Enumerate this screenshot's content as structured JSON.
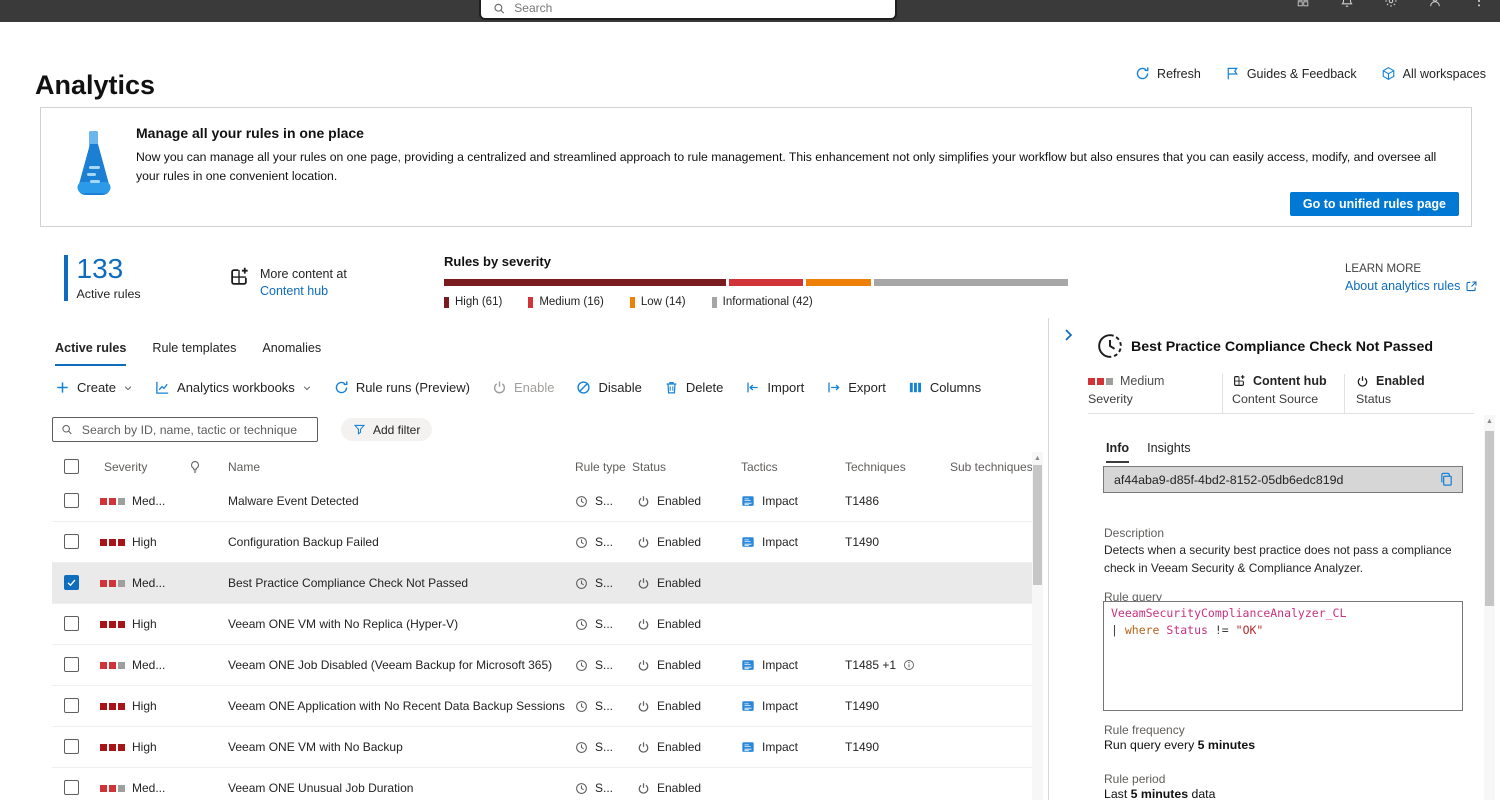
{
  "topbar": {
    "search_placeholder": "Search",
    "icons": [
      "apps-icon",
      "bell-icon",
      "gear-icon",
      "person-icon",
      "more-icon"
    ]
  },
  "header": {
    "title": "Analytics",
    "actions": {
      "refresh": "Refresh",
      "guides": "Guides & Feedback",
      "workspaces": "All workspaces"
    }
  },
  "banner": {
    "title": "Manage all your rules in one place",
    "description": "Now you can manage all your rules on one page, providing a centralized and streamlined approach to rule management. This enhancement not only simplifies your workflow but also ensures that you can easily access, modify, and oversee all your rules in one convenient location.",
    "button": "Go to unified rules page"
  },
  "stats": {
    "count": "133",
    "count_label": "Active rules",
    "more_content": "More content at",
    "content_hub": "Content hub",
    "severity_title": "Rules by severity",
    "segments": [
      {
        "label": "High (61)",
        "name": "High",
        "count": 61,
        "pct": 45.9,
        "color": "#7a1b1f"
      },
      {
        "label": "Medium (16)",
        "name": "Medium",
        "count": 16,
        "pct": 12.0,
        "color": "#d13438"
      },
      {
        "label": "Low (14)",
        "name": "Low",
        "count": 14,
        "pct": 10.5,
        "color": "#ee8008"
      },
      {
        "label": "Informational (42)",
        "name": "Informational",
        "count": 42,
        "pct": 31.6,
        "color": "#a6a6a6"
      }
    ],
    "learn_more": "LEARN MORE",
    "learn_link": "About analytics rules"
  },
  "tabs": [
    {
      "label": "Active rules",
      "active": true
    },
    {
      "label": "Rule templates",
      "active": false
    },
    {
      "label": "Anomalies",
      "active": false
    }
  ],
  "toolbar": {
    "items": [
      {
        "label": "Create"
      },
      {
        "label": "Analytics workbooks"
      },
      {
        "label": "Rule runs (Preview)"
      },
      {
        "label": "Enable",
        "disabled": true
      },
      {
        "label": "Disable"
      },
      {
        "label": "Delete"
      },
      {
        "label": "Import"
      },
      {
        "label": "Export"
      },
      {
        "label": "Columns"
      }
    ]
  },
  "filters": {
    "search_placeholder": "Search by ID, name, tactic or technique",
    "add_filter": "Add filter"
  },
  "table": {
    "headers": {
      "severity": "Severity",
      "name": "Name",
      "rule_type": "Rule type",
      "status": "Status",
      "tactics": "Tactics",
      "techniques": "Techniques",
      "sub_techniques": "Sub techniques"
    },
    "rows": [
      {
        "severity": "Med...",
        "level": "medium",
        "name": "Malware Event Detected",
        "rule_type": "S...",
        "status": "Enabled",
        "tactics": "Impact",
        "techniques": "T1486",
        "selected": false
      },
      {
        "severity": "High",
        "level": "high",
        "name": "Configuration Backup Failed",
        "rule_type": "S...",
        "status": "Enabled",
        "tactics": "Impact",
        "techniques": "T1490",
        "selected": false
      },
      {
        "severity": "Med...",
        "level": "medium",
        "name": "Best Practice Compliance Check Not Passed",
        "rule_type": "S...",
        "status": "Enabled",
        "tactics": "",
        "techniques": "",
        "selected": true
      },
      {
        "severity": "High",
        "level": "high",
        "name": "Veeam ONE VM with No Replica (Hyper-V)",
        "rule_type": "S...",
        "status": "Enabled",
        "tactics": "",
        "techniques": "",
        "selected": false
      },
      {
        "severity": "Med...",
        "level": "medium",
        "name": "Veeam ONE Job Disabled (Veeam Backup for Microsoft 365)",
        "rule_type": "S...",
        "status": "Enabled",
        "tactics": "Impact",
        "techniques": "T1485 +1",
        "selected": false
      },
      {
        "severity": "High",
        "level": "high",
        "name": "Veeam ONE Application with No Recent Data Backup Sessions",
        "rule_type": "S...",
        "status": "Enabled",
        "tactics": "Impact",
        "techniques": "T1490",
        "selected": false
      },
      {
        "severity": "High",
        "level": "high",
        "name": "Veeam ONE VM with No Backup",
        "rule_type": "S...",
        "status": "Enabled",
        "tactics": "Impact",
        "techniques": "T1490",
        "selected": false
      },
      {
        "severity": "Med...",
        "level": "medium",
        "name": "Veeam ONE Unusual Job Duration",
        "rule_type": "S...",
        "status": "Enabled",
        "tactics": "",
        "techniques": "",
        "selected": false
      }
    ]
  },
  "panel": {
    "title": "Best Practice Compliance Check Not Passed",
    "severity_value": "Medium",
    "severity_label": "Severity",
    "source_value": "Content hub",
    "source_label": "Content Source",
    "status_value": "Enabled",
    "status_label": "Status",
    "tab_info": "Info",
    "tab_insights": "Insights",
    "guid": "af44aba9-d85f-4bd2-8152-05db6edc819d",
    "description_label": "Description",
    "description": "Detects when a security best practice does not pass a compliance check in Veeam Security & Compliance Analyzer.",
    "rule_query_label": "Rule query",
    "query": {
      "line1": "VeeamSecurityComplianceAnalyzer_CL",
      "pipe": "| ",
      "keyword": "where",
      "identifier": " Status ",
      "operator": "!= ",
      "string": "\"OK\""
    },
    "frequency_label": "Rule frequency",
    "frequency_prefix": "Run query every ",
    "frequency_bold": "5 minutes",
    "period_label": "Rule period",
    "period_prefix": "Last ",
    "period_bold": "5 minutes",
    "period_suffix": " data"
  },
  "colors": {
    "accent": "#0078d4",
    "link": "#0f6cbd",
    "high_square": "#a81418",
    "medium_square": "#d13438",
    "inactive_square": "#a19f9d",
    "selected_row": "#eaeaea"
  }
}
